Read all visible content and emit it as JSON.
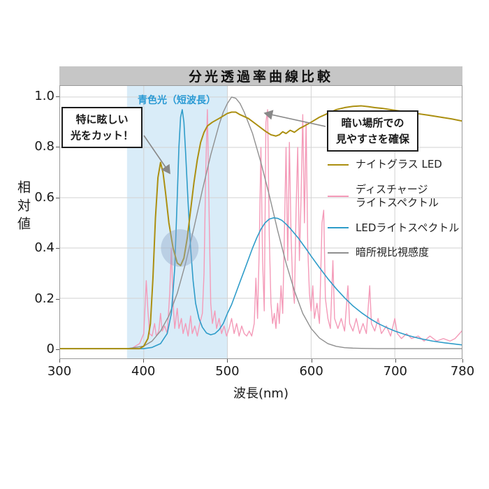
{
  "title": "分光透過率曲線比較",
  "axes": {
    "x_label": "波長(nm)",
    "y_label": "相対値"
  },
  "colors": {
    "title_bar_bg": "#c6c6c6",
    "plot_border": "#999999",
    "grid": "#d2d2d2",
    "band": "#d9ecf8",
    "band_label": "#2a9ad4",
    "highlight_circle": "#8fa8c8",
    "arrow": "#888888"
  },
  "annotations": [
    {
      "id": "cut-glare",
      "lines": [
        "特に眩しい",
        "光をカット！"
      ]
    },
    {
      "id": "dark-visibility",
      "lines": [
        "暗い場所での",
        "見やすさを確保"
      ]
    }
  ],
  "legend": [
    {
      "series_id": "night-glass-led",
      "lines": [
        "ナイトグラス LED"
      ],
      "color": "#ab8f10"
    },
    {
      "series_id": "discharge-light",
      "lines": [
        "ディスチャージ",
        "ライトスペクトル"
      ],
      "color": "#f49ab8"
    },
    {
      "series_id": "led-light",
      "lines": [
        "LEDライトスペクトル"
      ],
      "color": "#2e9cc9"
    },
    {
      "series_id": "scotopic",
      "lines": [
        "暗所視比視感度"
      ],
      "color": "#8f8f8f"
    }
  ],
  "chart_data": {
    "type": "line",
    "title": "分光透過率曲線比較",
    "xlabel": "波長(nm)",
    "ylabel": "相対値",
    "xlim": [
      300,
      780
    ],
    "ylim": [
      0,
      1.04
    ],
    "x_ticks": [
      300,
      400,
      500,
      600,
      700,
      780
    ],
    "y_ticks": [
      0,
      0.2,
      0.4,
      0.6,
      0.8,
      1.0
    ],
    "grid": true,
    "legend_position": "inside-right",
    "highlight_band": {
      "x_from": 380,
      "x_to": 500,
      "label": "青色光（短波長）"
    },
    "highlight_circle": {
      "x": 443,
      "y": 0.4,
      "r": 27
    },
    "series": [
      {
        "id": "night-glass-led",
        "name": "ナイトグラス LED",
        "color": "#ab8f10",
        "width": 2,
        "z": 4,
        "points": [
          [
            300,
            0
          ],
          [
            370,
            0
          ],
          [
            395,
            0
          ],
          [
            400,
            0.01
          ],
          [
            405,
            0.04
          ],
          [
            408,
            0.1
          ],
          [
            411,
            0.28
          ],
          [
            414,
            0.52
          ],
          [
            417,
            0.68
          ],
          [
            420,
            0.74
          ],
          [
            423,
            0.7
          ],
          [
            426,
            0.62
          ],
          [
            430,
            0.5
          ],
          [
            435,
            0.4
          ],
          [
            440,
            0.34
          ],
          [
            444,
            0.33
          ],
          [
            448,
            0.36
          ],
          [
            452,
            0.44
          ],
          [
            456,
            0.55
          ],
          [
            460,
            0.66
          ],
          [
            464,
            0.75
          ],
          [
            468,
            0.82
          ],
          [
            472,
            0.86
          ],
          [
            476,
            0.885
          ],
          [
            482,
            0.9
          ],
          [
            490,
            0.915
          ],
          [
            500,
            0.935
          ],
          [
            505,
            0.94
          ],
          [
            510,
            0.94
          ],
          [
            515,
            0.93
          ],
          [
            525,
            0.915
          ],
          [
            535,
            0.89
          ],
          [
            545,
            0.865
          ],
          [
            552,
            0.85
          ],
          [
            558,
            0.845
          ],
          [
            562,
            0.85
          ],
          [
            566,
            0.862
          ],
          [
            570,
            0.855
          ],
          [
            575,
            0.868
          ],
          [
            580,
            0.86
          ],
          [
            586,
            0.875
          ],
          [
            592,
            0.885
          ],
          [
            600,
            0.9
          ],
          [
            610,
            0.92
          ],
          [
            620,
            0.935
          ],
          [
            630,
            0.95
          ],
          [
            640,
            0.958
          ],
          [
            650,
            0.963
          ],
          [
            660,
            0.965
          ],
          [
            668,
            0.962
          ],
          [
            676,
            0.958
          ],
          [
            685,
            0.955
          ],
          [
            695,
            0.95
          ],
          [
            705,
            0.945
          ],
          [
            715,
            0.94
          ],
          [
            725,
            0.935
          ],
          [
            740,
            0.928
          ],
          [
            755,
            0.92
          ],
          [
            768,
            0.913
          ],
          [
            780,
            0.905
          ]
        ]
      },
      {
        "id": "discharge-light",
        "name": "ディスチャージライトスペクトル",
        "color": "#f49ab8",
        "width": 1.4,
        "z": 1,
        "points": [
          [
            300,
            0
          ],
          [
            385,
            0
          ],
          [
            395,
            0.02
          ],
          [
            400,
            0.06
          ],
          [
            403,
            0.27
          ],
          [
            405,
            0.15
          ],
          [
            407,
            0.06
          ],
          [
            410,
            0.05
          ],
          [
            413,
            0.1
          ],
          [
            415,
            0.05
          ],
          [
            418,
            0.07
          ],
          [
            420,
            0.14
          ],
          [
            422,
            0.07
          ],
          [
            425,
            0.09
          ],
          [
            428,
            0.06
          ],
          [
            431,
            0.22
          ],
          [
            433,
            0.4
          ],
          [
            435,
            0.18
          ],
          [
            437,
            0.08
          ],
          [
            440,
            0.16
          ],
          [
            442,
            0.08
          ],
          [
            445,
            0.12
          ],
          [
            447,
            0.06
          ],
          [
            450,
            0.1
          ],
          [
            453,
            0.05
          ],
          [
            456,
            0.13
          ],
          [
            458,
            0.06
          ],
          [
            461,
            0.09
          ],
          [
            464,
            0.05
          ],
          [
            467,
            0.1
          ],
          [
            470,
            0.14
          ],
          [
            472,
            0.3
          ],
          [
            474,
            0.7
          ],
          [
            476,
            0.95
          ],
          [
            478,
            0.55
          ],
          [
            480,
            0.18
          ],
          [
            482,
            0.1
          ],
          [
            485,
            0.15
          ],
          [
            487,
            0.08
          ],
          [
            490,
            0.12
          ],
          [
            493,
            0.06
          ],
          [
            496,
            0.09
          ],
          [
            499,
            0.05
          ],
          [
            502,
            0.08
          ],
          [
            505,
            0.12
          ],
          [
            508,
            0.06
          ],
          [
            511,
            0.1
          ],
          [
            514,
            0.05
          ],
          [
            517,
            0.09
          ],
          [
            520,
            0.06
          ],
          [
            523,
            0.05
          ],
          [
            526,
            0.07
          ],
          [
            529,
            0.05
          ],
          [
            532,
            0.1
          ],
          [
            534,
            0.28
          ],
          [
            536,
            0.12
          ],
          [
            538,
            0.4
          ],
          [
            540,
            0.8
          ],
          [
            542,
            0.35
          ],
          [
            544,
            0.15
          ],
          [
            546,
            0.9
          ],
          [
            548,
            0.95
          ],
          [
            550,
            0.45
          ],
          [
            552,
            0.18
          ],
          [
            554,
            0.1
          ],
          [
            556,
            0.14
          ],
          [
            558,
            0.08
          ],
          [
            560,
            0.18
          ],
          [
            562,
            0.1
          ],
          [
            564,
            0.25
          ],
          [
            566,
            0.14
          ],
          [
            568,
            0.45
          ],
          [
            570,
            0.8
          ],
          [
            572,
            0.35
          ],
          [
            574,
            0.82
          ],
          [
            576,
            0.45
          ],
          [
            578,
            0.25
          ],
          [
            580,
            0.18
          ],
          [
            582,
            0.55
          ],
          [
            584,
            0.8
          ],
          [
            586,
            0.35
          ],
          [
            588,
            0.6
          ],
          [
            590,
            0.93
          ],
          [
            592,
            0.5
          ],
          [
            594,
            0.9
          ],
          [
            596,
            0.4
          ],
          [
            598,
            0.22
          ],
          [
            600,
            0.15
          ],
          [
            602,
            0.25
          ],
          [
            604,
            0.12
          ],
          [
            607,
            0.18
          ],
          [
            610,
            0.1
          ],
          [
            613,
            0.5
          ],
          [
            615,
            0.55
          ],
          [
            617,
            0.2
          ],
          [
            620,
            0.12
          ],
          [
            623,
            0.08
          ],
          [
            626,
            0.35
          ],
          [
            628,
            0.12
          ],
          [
            632,
            0.08
          ],
          [
            636,
            0.12
          ],
          [
            640,
            0.07
          ],
          [
            644,
            0.25
          ],
          [
            646,
            0.1
          ],
          [
            650,
            0.07
          ],
          [
            654,
            0.12
          ],
          [
            658,
            0.06
          ],
          [
            662,
            0.1
          ],
          [
            666,
            0.06
          ],
          [
            670,
            0.25
          ],
          [
            672,
            0.1
          ],
          [
            676,
            0.07
          ],
          [
            680,
            0.12
          ],
          [
            684,
            0.06
          ],
          [
            690,
            0.09
          ],
          [
            695,
            0.05
          ],
          [
            700,
            0.12
          ],
          [
            703,
            0.06
          ],
          [
            708,
            0.04
          ],
          [
            714,
            0.06
          ],
          [
            720,
            0.04
          ],
          [
            728,
            0.05
          ],
          [
            735,
            0.03
          ],
          [
            742,
            0.05
          ],
          [
            750,
            0.03
          ],
          [
            758,
            0.04
          ],
          [
            766,
            0.03
          ],
          [
            772,
            0.04
          ],
          [
            780,
            0.07
          ]
        ]
      },
      {
        "id": "led-light",
        "name": "LEDライトスペクトル",
        "color": "#2e9cc9",
        "width": 1.6,
        "z": 3,
        "points": [
          [
            300,
            0
          ],
          [
            400,
            0
          ],
          [
            410,
            0.005
          ],
          [
            420,
            0.02
          ],
          [
            428,
            0.06
          ],
          [
            433,
            0.14
          ],
          [
            437,
            0.32
          ],
          [
            440,
            0.6
          ],
          [
            442,
            0.8
          ],
          [
            444,
            0.92
          ],
          [
            446,
            0.95
          ],
          [
            448,
            0.9
          ],
          [
            450,
            0.78
          ],
          [
            453,
            0.58
          ],
          [
            456,
            0.4
          ],
          [
            459,
            0.27
          ],
          [
            462,
            0.18
          ],
          [
            466,
            0.12
          ],
          [
            470,
            0.085
          ],
          [
            475,
            0.062
          ],
          [
            480,
            0.055
          ],
          [
            485,
            0.06
          ],
          [
            490,
            0.075
          ],
          [
            495,
            0.1
          ],
          [
            500,
            0.14
          ],
          [
            505,
            0.175
          ],
          [
            510,
            0.22
          ],
          [
            515,
            0.265
          ],
          [
            520,
            0.31
          ],
          [
            525,
            0.355
          ],
          [
            530,
            0.4
          ],
          [
            535,
            0.44
          ],
          [
            540,
            0.475
          ],
          [
            545,
            0.5
          ],
          [
            550,
            0.515
          ],
          [
            555,
            0.52
          ],
          [
            560,
            0.518
          ],
          [
            565,
            0.51
          ],
          [
            570,
            0.495
          ],
          [
            575,
            0.478
          ],
          [
            580,
            0.458
          ],
          [
            585,
            0.438
          ],
          [
            590,
            0.415
          ],
          [
            595,
            0.392
          ],
          [
            600,
            0.368
          ],
          [
            610,
            0.322
          ],
          [
            620,
            0.278
          ],
          [
            630,
            0.238
          ],
          [
            640,
            0.202
          ],
          [
            650,
            0.17
          ],
          [
            660,
            0.143
          ],
          [
            670,
            0.12
          ],
          [
            680,
            0.1
          ],
          [
            690,
            0.084
          ],
          [
            700,
            0.07
          ],
          [
            715,
            0.053
          ],
          [
            730,
            0.04
          ],
          [
            745,
            0.03
          ],
          [
            760,
            0.023
          ],
          [
            780,
            0.015
          ]
        ]
      },
      {
        "id": "scotopic",
        "name": "暗所視比視感度",
        "color": "#8f8f8f",
        "width": 1.4,
        "z": 2,
        "points": [
          [
            300,
            0
          ],
          [
            380,
            0
          ],
          [
            390,
            0.005
          ],
          [
            400,
            0.01
          ],
          [
            410,
            0.03
          ],
          [
            420,
            0.07
          ],
          [
            430,
            0.13
          ],
          [
            440,
            0.22
          ],
          [
            450,
            0.34
          ],
          [
            460,
            0.48
          ],
          [
            470,
            0.63
          ],
          [
            480,
            0.77
          ],
          [
            490,
            0.89
          ],
          [
            495,
            0.94
          ],
          [
            500,
            0.975
          ],
          [
            505,
            1.0
          ],
          [
            510,
            0.995
          ],
          [
            515,
            0.975
          ],
          [
            520,
            0.94
          ],
          [
            530,
            0.855
          ],
          [
            540,
            0.74
          ],
          [
            550,
            0.61
          ],
          [
            560,
            0.47
          ],
          [
            570,
            0.34
          ],
          [
            580,
            0.23
          ],
          [
            590,
            0.14
          ],
          [
            600,
            0.08
          ],
          [
            610,
            0.042
          ],
          [
            620,
            0.02
          ],
          [
            630,
            0.009
          ],
          [
            640,
            0.004
          ],
          [
            650,
            0.002
          ],
          [
            660,
            0.001
          ],
          [
            680,
            0
          ],
          [
            780,
            0
          ]
        ]
      }
    ]
  }
}
